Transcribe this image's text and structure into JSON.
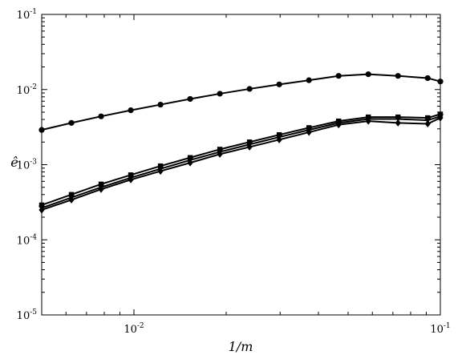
{
  "chart_data": {
    "type": "line",
    "xscale": "log",
    "yscale": "log",
    "xlim": [
      0.005,
      0.1
    ],
    "ylim": [
      1e-05,
      0.1
    ],
    "xlabel": "1/m",
    "ylabel": "ê",
    "grid": false,
    "x": [
      0.005,
      0.00625,
      0.0078125,
      0.009765625,
      0.0122070313,
      0.0152587891,
      0.0190734863,
      0.0238418579,
      0.0298023224,
      0.037252903,
      0.0465661287,
      0.0582076609,
      0.0727595761,
      0.0909494702,
      0.1
    ],
    "series": [
      {
        "marker": "circle",
        "values": [
          0.0029,
          0.0036,
          0.0044,
          0.0053,
          0.0063,
          0.0075,
          0.0088,
          0.0102,
          0.0117,
          0.0133,
          0.0152,
          0.016,
          0.0152,
          0.0142,
          0.0128
        ]
      },
      {
        "marker": "square",
        "values": [
          0.00029,
          0.0004,
          0.00055,
          0.00073,
          0.00096,
          0.00124,
          0.0016,
          0.002,
          0.0025,
          0.0031,
          0.0038,
          0.0043,
          0.0043,
          0.0042,
          0.0047
        ]
      },
      {
        "marker": "triangle-down",
        "values": [
          0.000265,
          0.000365,
          0.0005,
          0.00067,
          0.00088,
          0.00115,
          0.00148,
          0.00186,
          0.00233,
          0.0029,
          0.0036,
          0.00405,
          0.00405,
          0.0039,
          0.0044
        ]
      },
      {
        "marker": "diamond",
        "values": [
          0.00025,
          0.00034,
          0.00047,
          0.00063,
          0.00082,
          0.00106,
          0.00138,
          0.00172,
          0.00215,
          0.0027,
          0.0034,
          0.0038,
          0.0036,
          0.0035,
          0.0042
        ]
      }
    ],
    "x_ticks": [
      {
        "value": 0.01,
        "label": "10",
        "exp": "-2"
      },
      {
        "value": 0.1,
        "label": "10",
        "exp": "-1"
      }
    ],
    "y_ticks": [
      {
        "value": 1e-05,
        "label": "10",
        "exp": "-5"
      },
      {
        "value": 0.0001,
        "label": "10",
        "exp": "-4"
      },
      {
        "value": 0.001,
        "label": "10",
        "exp": "-3"
      },
      {
        "value": 0.01,
        "label": "10",
        "exp": "-2"
      },
      {
        "value": 0.1,
        "label": "10",
        "exp": "-1"
      }
    ]
  }
}
